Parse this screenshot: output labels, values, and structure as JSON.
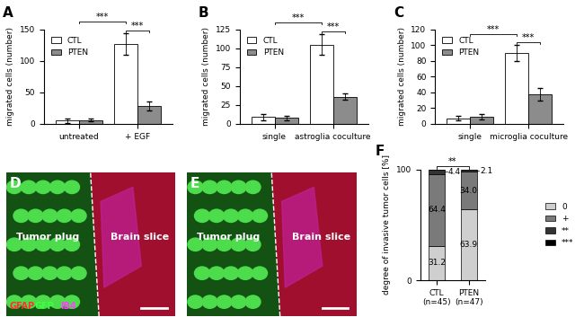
{
  "chart_data": [
    {
      "type": "bar",
      "title": "A",
      "y_label": "migrated cells (number)",
      "categories": [
        "untreated",
        "+ EGF"
      ],
      "series": [
        {
          "name": "CTL",
          "color": "#ffffff",
          "values": [
            5,
            127
          ],
          "errors": [
            3,
            17
          ]
        },
        {
          "name": "PTEN",
          "color": "#8c8c8c",
          "values": [
            6,
            28
          ],
          "errors": [
            2,
            7
          ]
        }
      ],
      "ylim": [
        0,
        150
      ],
      "yticks": [
        0,
        50,
        100,
        150
      ],
      "legend": "upper left",
      "significance": [
        {
          "text": "***",
          "from": [
            "+ EGF",
            "CTL"
          ],
          "to": [
            "+ EGF",
            "PTEN"
          ]
        },
        {
          "text": "***",
          "from": [
            "untreated",
            null
          ],
          "to": [
            "+ EGF",
            "CTL"
          ]
        }
      ]
    },
    {
      "type": "bar",
      "title": "B",
      "y_label": "migrated cells (number)",
      "categories": [
        "single",
        "astroglia coculture"
      ],
      "series": [
        {
          "name": "CTL",
          "color": "#ffffff",
          "values": [
            9,
            105
          ],
          "errors": [
            4,
            14
          ]
        },
        {
          "name": "PTEN",
          "color": "#8c8c8c",
          "values": [
            8,
            36
          ],
          "errors": [
            3,
            4
          ]
        }
      ],
      "ylim": [
        0,
        125
      ],
      "yticks": [
        0,
        25,
        50,
        75,
        100,
        125
      ],
      "legend": "upper left",
      "significance": [
        {
          "text": "***",
          "from": [
            "astroglia coculture",
            "CTL"
          ],
          "to": [
            "astroglia coculture",
            "PTEN"
          ]
        },
        {
          "text": "***",
          "from": [
            "single",
            null
          ],
          "to": [
            "astroglia coculture",
            "CTL"
          ]
        }
      ]
    },
    {
      "type": "bar",
      "title": "C",
      "y_label": "migrated cells (number)",
      "categories": [
        "single",
        "microglia coculture"
      ],
      "series": [
        {
          "name": "CTL",
          "color": "#ffffff",
          "values": [
            7,
            90
          ],
          "errors": [
            3,
            10
          ]
        },
        {
          "name": "PTEN",
          "color": "#8c8c8c",
          "values": [
            9,
            37
          ],
          "errors": [
            3,
            8
          ]
        }
      ],
      "ylim": [
        0,
        120
      ],
      "yticks": [
        0,
        20,
        40,
        60,
        80,
        100,
        120
      ],
      "legend": "upper left",
      "significance": [
        {
          "text": "***",
          "from": [
            "microglia coculture",
            "CTL"
          ],
          "to": [
            "microglia coculture",
            "PTEN"
          ]
        },
        {
          "text": "***",
          "from": [
            "single",
            null
          ],
          "to": [
            "microglia coculture",
            "CTL"
          ]
        }
      ]
    },
    {
      "type": "bar",
      "stacked": true,
      "title": "F",
      "y_label": "degree of invasive tumor cells [%]",
      "categories": [
        "CTL\n(n=45)",
        "PTEN\n(n=47)"
      ],
      "series": [
        {
          "name": "0",
          "color": "#cfcfcf",
          "values": [
            31.2,
            63.9
          ]
        },
        {
          "name": "+",
          "color": "#7a7a7a",
          "values": [
            64.4,
            34.0
          ]
        },
        {
          "name": "**",
          "color": "#333333",
          "values": [
            4.4,
            2.1
          ]
        },
        {
          "name": "***",
          "color": "#000000",
          "values": [
            0,
            0
          ]
        }
      ],
      "ylim": [
        0,
        100
      ],
      "yticks": [
        0,
        100
      ],
      "data_labels": true,
      "legend": "right",
      "significance": [
        {
          "text": "**",
          "from": [
            "CTL\n(n=45)",
            null
          ],
          "to": [
            "PTEN\n(n=47)",
            null
          ]
        }
      ]
    }
  ],
  "images": [
    {
      "title": "D",
      "labels": [
        "Tumor plug",
        "Brain slice"
      ],
      "stains": [
        {
          "text": "GFAP",
          "color": "#ff3030"
        },
        {
          "text": "GFP",
          "color": "#40ff40"
        },
        {
          "text": "IB4",
          "color": "#ff40ff"
        }
      ]
    },
    {
      "title": "E",
      "labels": [
        "Tumor plug",
        "Brain slice"
      ]
    }
  ]
}
